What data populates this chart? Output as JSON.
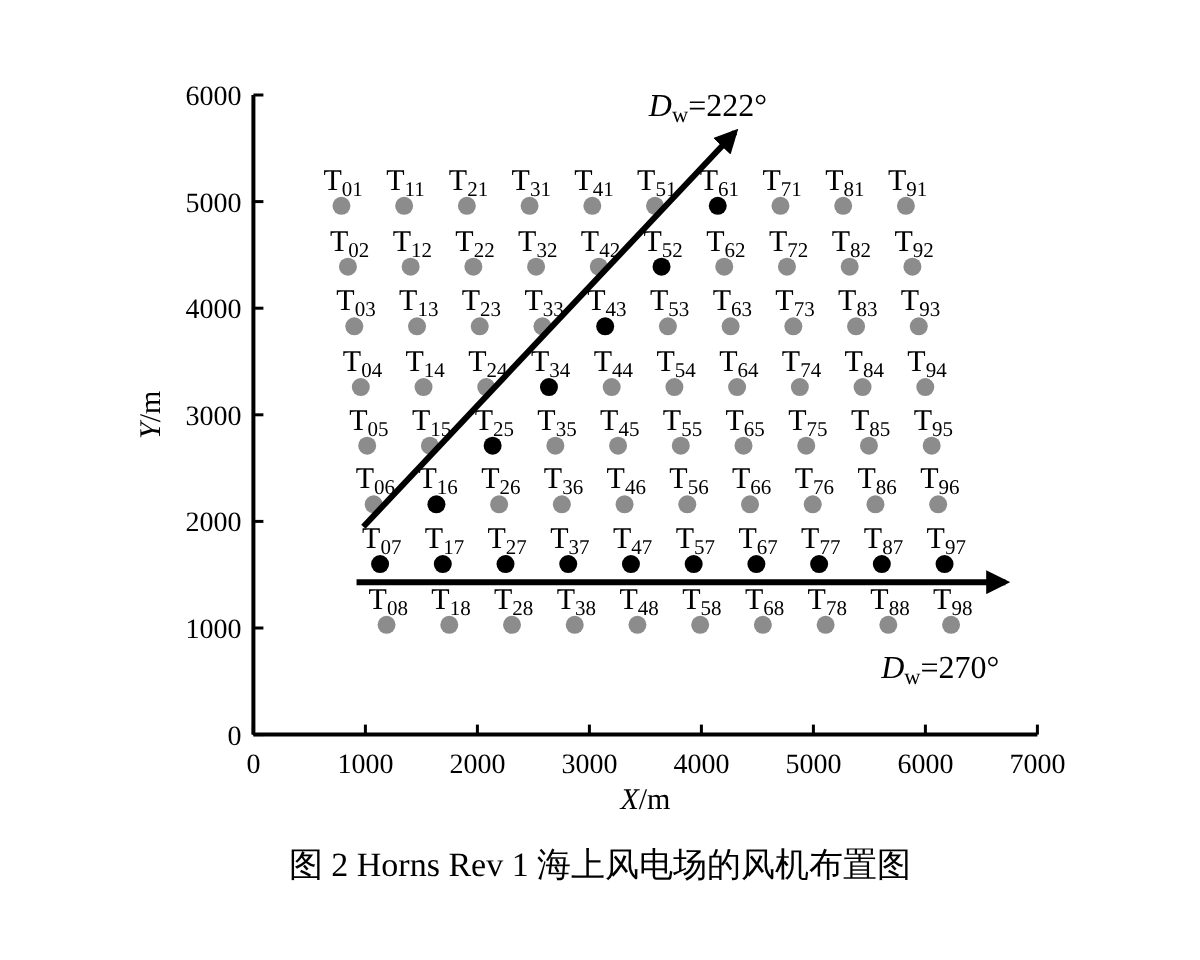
{
  "chart_data": {
    "type": "scatter",
    "title": "图 2 Horns Rev 1 海上风电场的风机布置图",
    "xlabel": "*X*/m",
    "ylabel": "*Y*/m",
    "xlim": [
      0,
      7000
    ],
    "ylim": [
      0,
      6000
    ],
    "xticks": [
      0,
      1000,
      2000,
      3000,
      4000,
      5000,
      6000,
      7000
    ],
    "yticks": [
      0,
      1000,
      2000,
      3000,
      4000,
      5000,
      6000
    ],
    "marker": "circle",
    "series": [
      {
        "color": "#8c8c8c",
        "x": [
          786,
          844,
          901,
          959,
          1016,
          1074,
          1189,
          1346,
          1404,
          1461,
          1519,
          1576,
          1749,
          1906,
          1964,
          2021,
          2079,
          2194,
          2309,
          2466,
          2524,
          2581,
          2696,
          2754,
          2869,
          3026,
          3084,
          3199,
          3256,
          3314,
          3429,
          3586,
          3701,
          3759,
          3816,
          3874,
          3989,
          4204,
          4261,
          4319,
          4376,
          4434,
          4549,
          4706,
          4764,
          4821,
          4879,
          4936,
          4994,
          5109,
          5266,
          5324,
          5381,
          5439,
          5496,
          5554,
          5669,
          5826,
          5884,
          5941,
          5999,
          6056,
          6114,
          6229
        ],
        "values": [
          4960,
          4390,
          3830,
          3260,
          2710,
          2160,
          1030,
          4960,
          4390,
          3830,
          3260,
          2710,
          1030,
          4960,
          4390,
          3830,
          3260,
          2160,
          1030,
          4960,
          4390,
          3830,
          2710,
          2160,
          1030,
          4960,
          4390,
          3260,
          2710,
          2160,
          1030,
          4960,
          3830,
          3260,
          2710,
          2160,
          1030,
          4390,
          3830,
          3260,
          2710,
          2160,
          1030,
          4960,
          4390,
          3830,
          3260,
          2710,
          2160,
          1030,
          4960,
          4390,
          3830,
          3260,
          2710,
          2160,
          1030,
          4960,
          4390,
          3830,
          3260,
          2710,
          2160,
          1030
        ]
      },
      {
        "color": "#000000",
        "x": [
          1131,
          1691,
          2251,
          2811,
          3371,
          3931,
          4491,
          5051,
          5611,
          6171,
          1634,
          2136,
          2639,
          3141,
          3644,
          4146
        ],
        "values": [
          1600,
          1600,
          1600,
          1600,
          1600,
          1600,
          1600,
          1600,
          1600,
          1600,
          2160,
          2710,
          3260,
          3830,
          4390,
          4960
        ]
      },
      {
        "type": "line",
        "marker": "none",
        "color": "#000000",
        "x": [
          982,
          4300
        ],
        "values": [
          1950,
          5650
        ]
      },
      {
        "type": "line",
        "marker": "none",
        "color": "#000000",
        "x": [
          921,
          6714
        ],
        "values": [
          1430,
          1430
        ]
      }
    ],
    "annotations": [
      "*D*$_{w}$=222°",
      "*D*$_{w}$=270°",
      {
        "text": "T$_{01}$",
        "x": 786,
        "y": 4960
      },
      {
        "text": "T$_{02}$",
        "x": 844,
        "y": 4390
      },
      {
        "text": "T$_{03}$",
        "x": 901,
        "y": 3830
      },
      {
        "text": "T$_{04}$",
        "x": 959,
        "y": 3260
      },
      {
        "text": "T$_{05}$",
        "x": 1016,
        "y": 2710
      },
      {
        "text": "T$_{06}$",
        "x": 1074,
        "y": 2160
      },
      {
        "text": "T$_{07}$",
        "x": 1131,
        "y": 1600
      },
      {
        "text": "T$_{08}$",
        "x": 1189,
        "y": 1030
      },
      {
        "text": "T$_{11}$",
        "x": 1346,
        "y": 4960
      },
      {
        "text": "T$_{12}$",
        "x": 1404,
        "y": 4390
      },
      {
        "text": "T$_{13}$",
        "x": 1461,
        "y": 3830
      },
      {
        "text": "T$_{14}$",
        "x": 1519,
        "y": 3260
      },
      {
        "text": "T$_{15}$",
        "x": 1576,
        "y": 2710
      },
      {
        "text": "T$_{16}$",
        "x": 1634,
        "y": 2160
      },
      {
        "text": "T$_{17}$",
        "x": 1691,
        "y": 1600
      },
      {
        "text": "T$_{18}$",
        "x": 1749,
        "y": 1030
      },
      {
        "text": "T$_{21}$",
        "x": 1906,
        "y": 4960
      },
      {
        "text": "T$_{22}$",
        "x": 1964,
        "y": 4390
      },
      {
        "text": "T$_{23}$",
        "x": 2021,
        "y": 3830
      },
      {
        "text": "T$_{24}$",
        "x": 2079,
        "y": 3260
      },
      {
        "text": "T$_{25}$",
        "x": 2136,
        "y": 2710
      },
      {
        "text": "T$_{26}$",
        "x": 2194,
        "y": 2160
      },
      {
        "text": "T$_{27}$",
        "x": 2251,
        "y": 1600
      },
      {
        "text": "T$_{28}$",
        "x": 2309,
        "y": 1030
      },
      {
        "text": "T$_{31}$",
        "x": 2466,
        "y": 4960
      },
      {
        "text": "T$_{32}$",
        "x": 2524,
        "y": 4390
      },
      {
        "text": "T$_{33}$",
        "x": 2581,
        "y": 3830
      },
      {
        "text": "T$_{34}$",
        "x": 2639,
        "y": 3260
      },
      {
        "text": "T$_{35}$",
        "x": 2696,
        "y": 2710
      },
      {
        "text": "T$_{36}$",
        "x": 2754,
        "y": 2160
      },
      {
        "text": "T$_{37}$",
        "x": 2811,
        "y": 1600
      },
      {
        "text": "T$_{38}$",
        "x": 2869,
        "y": 1030
      },
      {
        "text": "T$_{41}$",
        "x": 3026,
        "y": 4960
      },
      {
        "text": "T$_{42}$",
        "x": 3084,
        "y": 4390
      },
      {
        "text": "T$_{43}$",
        "x": 3141,
        "y": 3830
      },
      {
        "text": "T$_{44}$",
        "x": 3199,
        "y": 3260
      },
      {
        "text": "T$_{45}$",
        "x": 3256,
        "y": 2710
      },
      {
        "text": "T$_{46}$",
        "x": 3314,
        "y": 2160
      },
      {
        "text": "T$_{47}$",
        "x": 3371,
        "y": 1600
      },
      {
        "text": "T$_{48}$",
        "x": 3429,
        "y": 1030
      },
      {
        "text": "T$_{51}$",
        "x": 3586,
        "y": 4960
      },
      {
        "text": "T$_{52}$",
        "x": 3644,
        "y": 4390
      },
      {
        "text": "T$_{53}$",
        "x": 3701,
        "y": 3830
      },
      {
        "text": "T$_{54}$",
        "x": 3759,
        "y": 3260
      },
      {
        "text": "T$_{55}$",
        "x": 3816,
        "y": 2710
      },
      {
        "text": "T$_{56}$",
        "x": 3874,
        "y": 2160
      },
      {
        "text": "T$_{57}$",
        "x": 3931,
        "y": 1600
      },
      {
        "text": "T$_{58}$",
        "x": 3989,
        "y": 1030
      },
      {
        "text": "T$_{61}$",
        "x": 4146,
        "y": 4960
      },
      {
        "text": "T$_{62}$",
        "x": 4204,
        "y": 4390
      },
      {
        "text": "T$_{63}$",
        "x": 4261,
        "y": 3830
      },
      {
        "text": "T$_{64}$",
        "x": 4319,
        "y": 3260
      },
      {
        "text": "T$_{65}$",
        "x": 4376,
        "y": 2710
      },
      {
        "text": "T$_{66}$",
        "x": 4434,
        "y": 2160
      },
      {
        "text": "T$_{67}$",
        "x": 4491,
        "y": 1600
      },
      {
        "text": "T$_{68}$",
        "x": 4549,
        "y": 1030
      },
      {
        "text": "T$_{71}$",
        "x": 4706,
        "y": 4960
      },
      {
        "text": "T$_{72}$",
        "x": 4764,
        "y": 4390
      },
      {
        "text": "T$_{73}$",
        "x": 4821,
        "y": 3830
      },
      {
        "text": "T$_{74}$",
        "x": 4879,
        "y": 3260
      },
      {
        "text": "T$_{75}$",
        "x": 4936,
        "y": 2710
      },
      {
        "text": "T$_{76}$",
        "x": 4994,
        "y": 2160
      },
      {
        "text": "T$_{77}$",
        "x": 5051,
        "y": 1600
      },
      {
        "text": "T$_{78}$",
        "x": 5109,
        "y": 1030
      },
      {
        "text": "T$_{81}$",
        "x": 5266,
        "y": 4960
      },
      {
        "text": "T$_{82}$",
        "x": 5324,
        "y": 4390
      },
      {
        "text": "T$_{83}$",
        "x": 5381,
        "y": 3830
      },
      {
        "text": "T$_{84}$",
        "x": 5439,
        "y": 3260
      },
      {
        "text": "T$_{85}$",
        "x": 5496,
        "y": 2710
      },
      {
        "text": "T$_{86}$",
        "x": 5554,
        "y": 2160
      },
      {
        "text": "T$_{87}$",
        "x": 5611,
        "y": 1600
      },
      {
        "text": "T$_{88}$",
        "x": 5669,
        "y": 1030
      },
      {
        "text": "T$_{91}$",
        "x": 5826,
        "y": 4960
      },
      {
        "text": "T$_{92}$",
        "x": 5884,
        "y": 4390
      },
      {
        "text": "T$_{93}$",
        "x": 5941,
        "y": 3830
      },
      {
        "text": "T$_{94}$",
        "x": 5999,
        "y": 3260
      },
      {
        "text": "T$_{95}$",
        "x": 6056,
        "y": 2710
      },
      {
        "text": "T$_{96}$",
        "x": 6114,
        "y": 2160
      },
      {
        "text": "T$_{97}$",
        "x": 6171,
        "y": 1600
      },
      {
        "text": "T$_{98}$",
        "x": 6229,
        "y": 1030
      }
    ]
  }
}
